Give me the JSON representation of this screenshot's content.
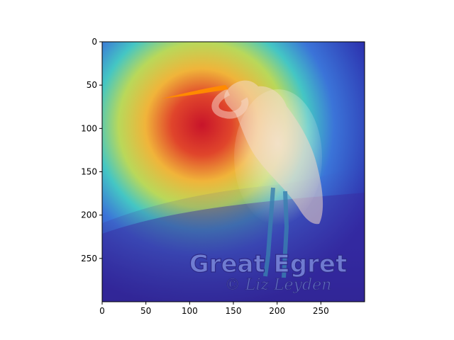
{
  "image": {
    "description_icon": "heatmap-overlay-on-egret-photo",
    "watermark": {
      "title": "Great Egret",
      "credit": "© Liz Leyden"
    }
  },
  "axes": {
    "x_ticks": [
      "0",
      "50",
      "100",
      "150",
      "200",
      "250"
    ],
    "y_ticks": [
      "0",
      "50",
      "100",
      "150",
      "200",
      "250"
    ],
    "xlim": [
      0,
      299
    ],
    "ylim": [
      299,
      0
    ]
  },
  "colors": {
    "heat_hot": "#d81c1c",
    "heat_warm": "#f2d23a",
    "heat_mid": "#53c6c8",
    "heat_cold": "#2b2fbf",
    "beak": "#ff8a00"
  }
}
